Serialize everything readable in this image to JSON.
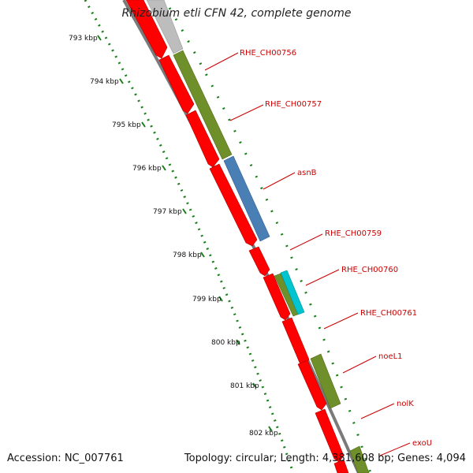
{
  "title": "Rhizobium etli CFN 42, complete genome",
  "accession": "Accession: NC_007761",
  "summary": "Topology: circular; Length: 4,381,608 bp; Genes: 4,094",
  "colors": {
    "cds_forward": "#ff0000",
    "gene_olive": "#6e8f2a",
    "gene_blue": "#4a7fb5",
    "gene_cyan": "#00c5d0",
    "gene_grey": "#bdbdbd",
    "backbone": "#7a7a7a",
    "ticks": "#1a7f1a",
    "label": "#cc0000"
  },
  "ticks": [
    "793 kbp",
    "794 kbp",
    "795 kbp",
    "796 kbp",
    "797 kbp",
    "798 kbp",
    "799 kbp",
    "800 kbp",
    "801 kbp",
    "802 kbp"
  ],
  "genes": [
    "RHE_CH00756",
    "RHE_CH00757",
    "asnB",
    "RHE_CH00759",
    "RHE_CH00760",
    "RHE_CH00761",
    "noeL1",
    "nolK",
    "exoU"
  ]
}
